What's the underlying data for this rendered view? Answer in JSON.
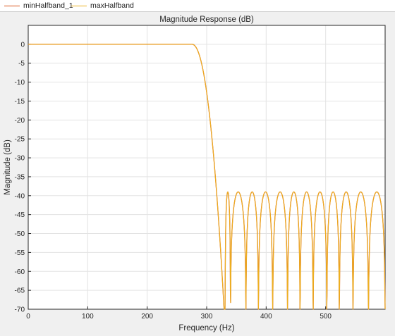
{
  "legend": {
    "items": [
      {
        "label": "minHalfband_1",
        "color": "#d95319"
      },
      {
        "label": "maxHalfband",
        "color": "#edb120"
      }
    ]
  },
  "chart_data": {
    "type": "line",
    "title": "Magnitude Response (dB)",
    "xlabel": "Frequency (Hz)",
    "ylabel": "Magnitude (dB)",
    "xlim": [
      0,
      600
    ],
    "ylim": [
      -70,
      5
    ],
    "xticks": [
      0,
      100,
      200,
      300,
      400,
      500
    ],
    "yticks": [
      0,
      -5,
      -10,
      -15,
      -20,
      -25,
      -30,
      -35,
      -40,
      -45,
      -50,
      -55,
      -60,
      -65,
      -70
    ],
    "grid": true,
    "legend_position": "top",
    "passband_edge_hz": 275,
    "stopband_edge_hz": 330,
    "stopband_ripple_peak_db": -39,
    "stopband_nulls_hz": [
      331,
      340,
      366,
      387,
      411,
      436,
      457,
      479,
      502,
      523,
      546,
      572,
      600
    ],
    "series": [
      {
        "name": "minHalfband_1",
        "color": "#d95319"
      },
      {
        "name": "maxHalfband",
        "color": "#edb120"
      }
    ]
  }
}
